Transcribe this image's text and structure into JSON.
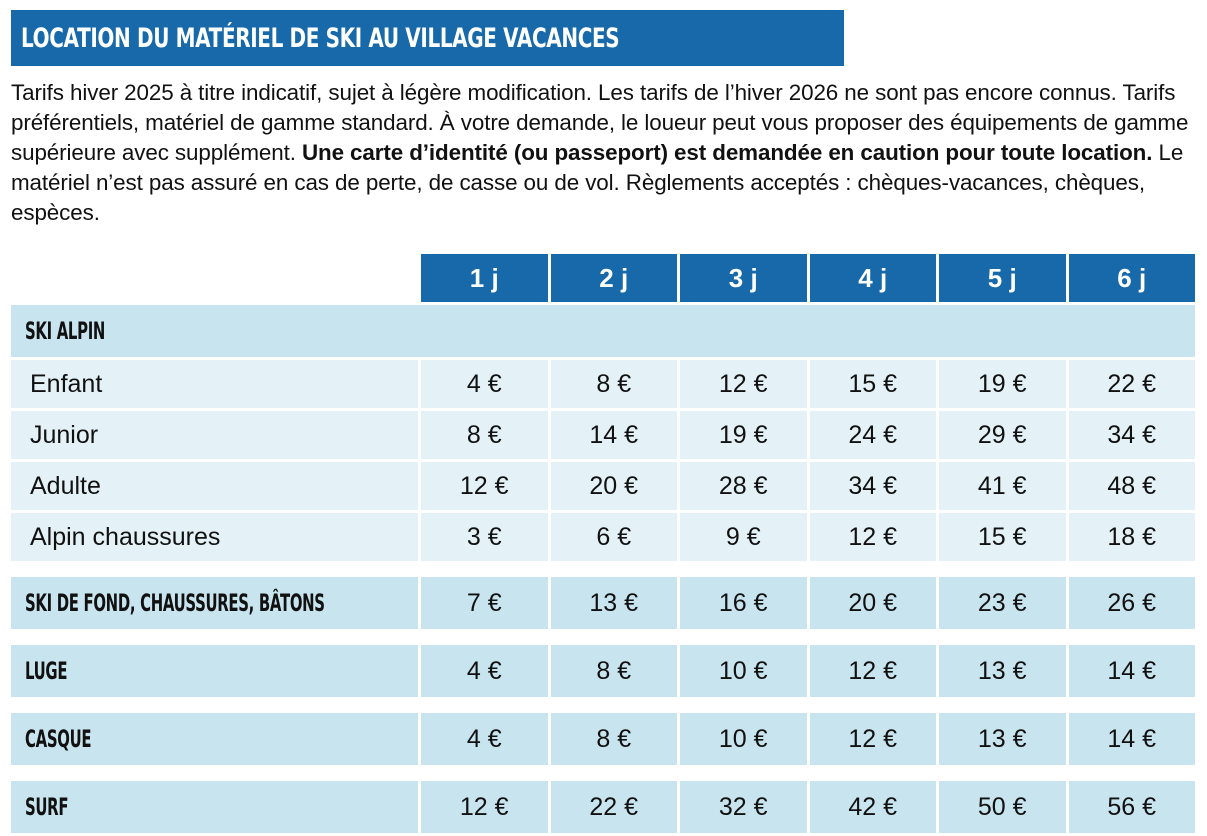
{
  "title": "LOCATION DU MATÉRIEL DE SKI AU VILLAGE VACANCES",
  "intro": {
    "part1": "Tarifs hiver 2025 à titre indicatif, sujet à légère modification. Les tarifs de l’hiver 2026 ne sont pas encore connus. Tarifs préférentiels, matériel de gamme standard. À votre demande, le loueur peut vous proposer des équipements de gamme supérieure avec supplément. ",
    "bold": "Une carte d’identité (ou passeport) est demandée en caution pour toute location.",
    "part2": " Le matériel n’est pas assuré en cas de perte, de casse ou de vol. Règlements acceptés : chèques-vacances, chèques, espèces."
  },
  "table": {
    "days": [
      "1 j",
      "2 j",
      "3 j",
      "4 j",
      "5 j",
      "6 j"
    ],
    "ski_alpin": {
      "label": "SKI ALPIN",
      "rows": [
        {
          "label": "Enfant",
          "prices": [
            "4 €",
            "8 €",
            "12 €",
            "15 €",
            "19 €",
            "22 €"
          ]
        },
        {
          "label": "Junior",
          "prices": [
            "8 €",
            "14 €",
            "19 €",
            "24 €",
            "29 €",
            "34 €"
          ]
        },
        {
          "label": "Adulte",
          "prices": [
            "12 €",
            "20 €",
            "28 €",
            "34 €",
            "41 €",
            "48 €"
          ]
        },
        {
          "label": "Alpin chaussures",
          "prices": [
            "3 €",
            "6 €",
            "9 €",
            "12 €",
            "15 €",
            "18 €"
          ]
        }
      ]
    },
    "sections": [
      {
        "label": "SKI DE FOND, CHAUSSURES, BÂTONS",
        "prices": [
          "7 €",
          "13 €",
          "16 €",
          "20 €",
          "23 €",
          "26 €"
        ]
      },
      {
        "label": "LUGE",
        "prices": [
          "4 €",
          "8 €",
          "10 €",
          "12 €",
          "13 €",
          "14 €"
        ]
      },
      {
        "label": "CASQUE",
        "prices": [
          "4 €",
          "8 €",
          "10 €",
          "12 €",
          "13 €",
          "14 €"
        ]
      },
      {
        "label": "SURF",
        "prices": [
          "12 €",
          "22 €",
          "32 €",
          "42 €",
          "50 €",
          "56 €"
        ]
      }
    ]
  },
  "colors": {
    "header_blue": "#1769aa",
    "section_bg": "#c8e4ee",
    "row_bg": "#e4f2f7"
  }
}
